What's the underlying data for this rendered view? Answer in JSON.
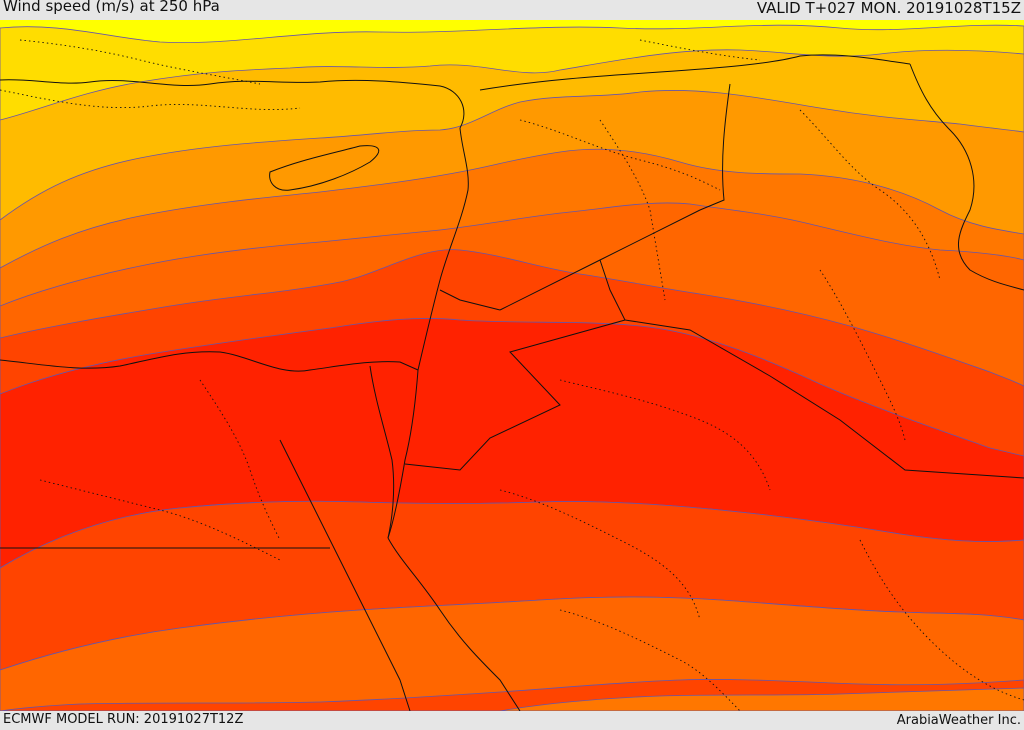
{
  "header": {
    "title": "Wind speed (m/s) at 250 hPa",
    "valid_time": "VALID T+027 MON. 20191028T15Z"
  },
  "footer": {
    "model_run": "ECMWF MODEL RUN: 20191027T12Z",
    "credit": "ArabiaWeather Inc."
  },
  "colors": {
    "band_1": "#ffff00",
    "band_2": "#ffdd00",
    "band_3": "#ffbb00",
    "band_4": "#ff9900",
    "band_5": "#ff7700",
    "band_6": "#ff6600",
    "band_7": "#ff4400",
    "band_8": "#ff2200",
    "contour_line": "#6655aa",
    "boundary_line": "#111111"
  }
}
